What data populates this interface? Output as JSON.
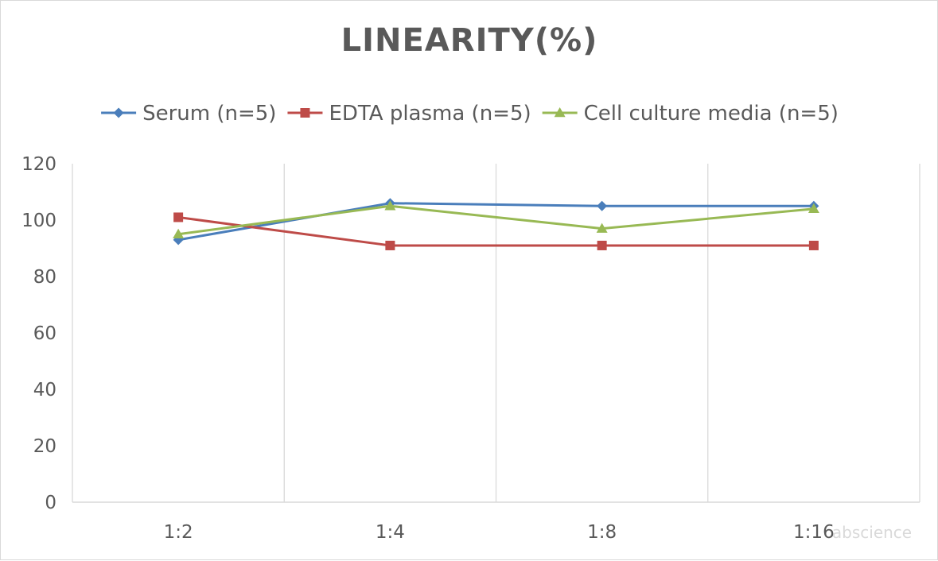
{
  "chart_data": {
    "type": "line",
    "title": "LINEARITY(%)",
    "categories": [
      "1:2",
      "1:4",
      "1:8",
      "1:16"
    ],
    "series": [
      {
        "name": "Serum (n=5)",
        "values": [
          93,
          106,
          105,
          105
        ],
        "color": "#4a7ebb",
        "marker": "diamond"
      },
      {
        "name": "EDTA plasma (n=5)",
        "values": [
          101,
          91,
          91,
          91
        ],
        "color": "#be4b48",
        "marker": "square"
      },
      {
        "name": "Cell culture media (n=5)",
        "values": [
          95,
          105,
          97,
          104
        ],
        "color": "#98b954",
        "marker": "triangle"
      }
    ],
    "ylim": [
      0,
      120
    ],
    "yticks": [
      0,
      20,
      40,
      60,
      80,
      100,
      120
    ],
    "grid": "vertical",
    "legend_position": "top"
  },
  "watermark": "abscience",
  "colors": {
    "axis": "#d9d9d9",
    "grid": "#d9d9d9",
    "text": "#595959"
  }
}
